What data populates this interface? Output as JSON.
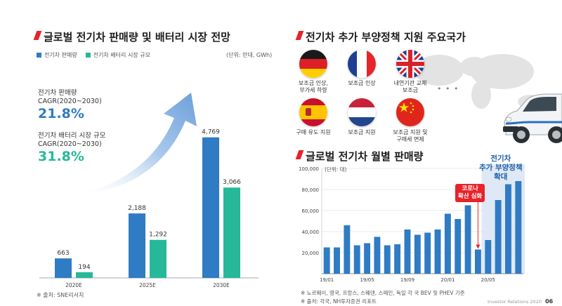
{
  "left": {
    "title": "글로벌 전기차 판매량 및 배터리 시장 전망",
    "legend": [
      {
        "label": "전기차 판매량",
        "color": "#2f7bc4"
      },
      {
        "label": "전기차 배터리 시장 규모",
        "color": "#27b89a"
      }
    ],
    "unit": "(단위: 만대, GWh)",
    "cagr": [
      {
        "label": "전기차 판매량",
        "period": "CAGR(2020~2030)",
        "value": "21.8%",
        "color": "#2f7bc4"
      },
      {
        "label": "전기차 배터리 시장 규모",
        "period": "CAGR(2020~2030)",
        "value": "31.8%",
        "color": "#27b89a"
      }
    ],
    "source": "※ 출처: SNE리서치"
  },
  "right": {
    "title": "전기차 추가 부양정책 지원 주요국가",
    "countries": [
      {
        "name": "germany-flag-icon",
        "label": "보조금 인상,\n부가세 하향"
      },
      {
        "name": "france-flag-icon",
        "label": "보조금 인상"
      },
      {
        "name": "uk-flag-icon",
        "label": "내연기관 교체\n보조금"
      },
      {
        "name": "spain-flag-icon",
        "label": "구매 유도 지원"
      },
      {
        "name": "netherlands-flag-icon",
        "label": "보조금 지원"
      },
      {
        "name": "china-flag-icon",
        "label": "보조금 지원 및\n구매세 면제"
      }
    ],
    "more": "• • •"
  },
  "monthly": {
    "title": "글로벌 전기차 월별 판매량",
    "unit": "(단위: 대)",
    "callout_covid": "코로나\n확산 심화",
    "callout_policy": "전기차\n추가 부양정책\n확대",
    "notes": [
      "※ 노르웨이, 영국, 프랑스, 스웨덴, 스페인, 독일 각 국 BEV 및 PHEV 기준",
      "※ 출처: 각국, NH투자증권 리포트"
    ]
  },
  "footer": {
    "text": "Investor Relations 2020",
    "page": "06"
  },
  "chart_data": [
    {
      "type": "bar",
      "categories": [
        "2020E",
        "2025E",
        "2030E"
      ],
      "series": [
        {
          "name": "전기차 판매량",
          "values": [
            663,
            2188,
            4769
          ],
          "labels": [
            "663",
            "2,188",
            "4,769"
          ],
          "color": "#2f7bc4"
        },
        {
          "name": "전기차 배터리 시장 규모",
          "values": [
            194,
            1292,
            3066
          ],
          "labels": [
            "194",
            "1,292",
            "3,066"
          ],
          "color": "#27b89a"
        }
      ],
      "ylim": [
        0,
        5000
      ]
    },
    {
      "type": "bar",
      "title": "글로벌 전기차 월별 판매량",
      "x": [
        "19/01",
        "19/02",
        "19/03",
        "19/04",
        "19/05",
        "19/06",
        "19/07",
        "19/08",
        "19/09",
        "19/10",
        "19/11",
        "19/12",
        "20/01",
        "20/02",
        "20/03",
        "20/04",
        "20/05",
        "20/06",
        "20/07",
        "20/08"
      ],
      "x_tick_labels": [
        "19/01",
        "19/05",
        "19/09",
        "20/01",
        "20/05"
      ],
      "values": [
        25000,
        25000,
        46000,
        27000,
        29000,
        35000,
        27000,
        28000,
        42000,
        37000,
        39000,
        42000,
        57000,
        52000,
        65000,
        23000,
        32000,
        70000,
        85000,
        88000
      ],
      "yticks": [
        "100,000",
        "80,000",
        "60,000",
        "40,000",
        "20,000"
      ],
      "ylim": [
        0,
        100000
      ],
      "color": "#2f7bc4",
      "highlight_from": "20/05"
    }
  ]
}
